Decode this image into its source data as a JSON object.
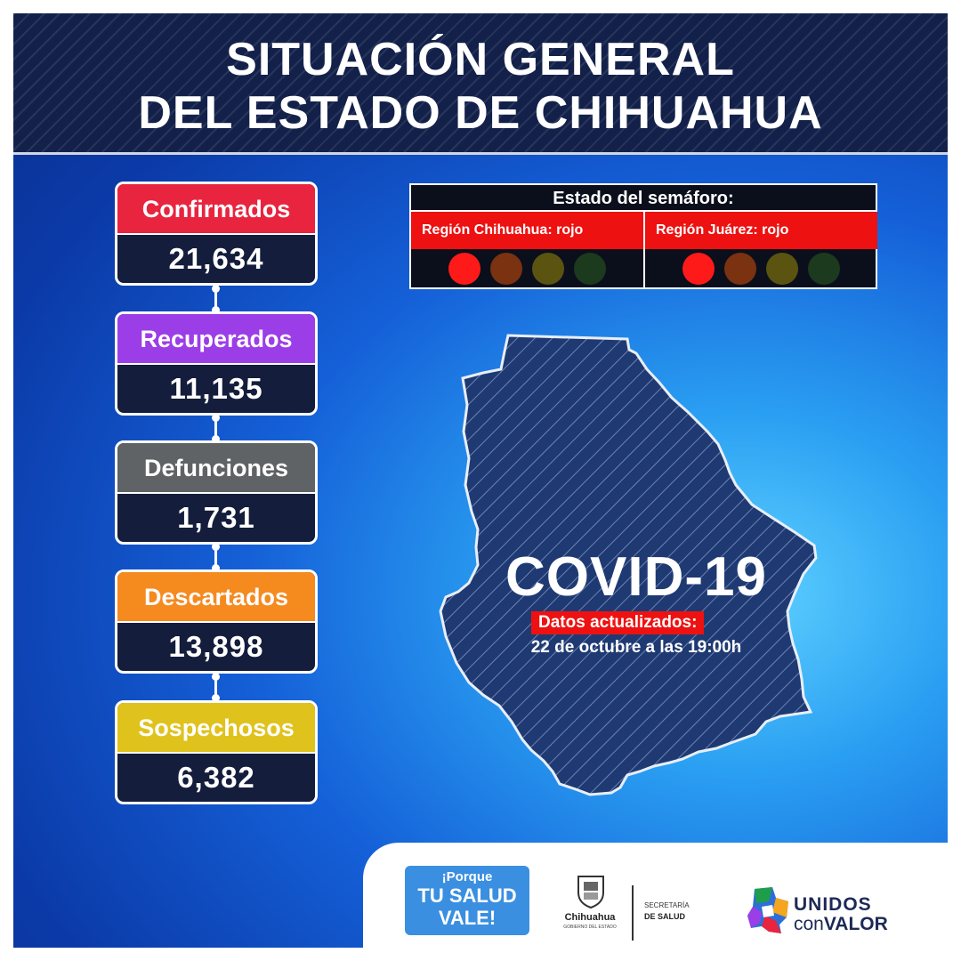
{
  "header": {
    "title_line_1": "SITUACIÓN GENERAL",
    "title_line_2": "DEL ESTADO DE CHIHUAHUA"
  },
  "stats": [
    {
      "label": "Confirmados",
      "value": "21,634",
      "color": "#e8243f"
    },
    {
      "label": "Recuperados",
      "value": "11,135",
      "color": "#9b3ee8"
    },
    {
      "label": "Defunciones",
      "value": "1,731",
      "color": "#5f6366"
    },
    {
      "label": "Descartados",
      "value": "13,898",
      "color": "#f58a1f"
    },
    {
      "label": "Sospechosos",
      "value": "6,382",
      "color": "#e0c21c"
    }
  ],
  "semaforo": {
    "title": "Estado del semáforo:",
    "regions": [
      {
        "label": "Región Chihuahua: rojo",
        "active": "red"
      },
      {
        "label": "Región Juárez: rojo",
        "active": "red"
      }
    ],
    "light_colors": [
      "#ff1a1a",
      "#7a3210",
      "#5a5410",
      "#1c3a1e"
    ]
  },
  "covid": {
    "title": "COVID-19",
    "updated_label": "Datos actualizados:",
    "updated_date": "22 de octubre a las 19:00h"
  },
  "footer": {
    "badge_line_1": "¡Porque",
    "badge_line_2": "TU SALUD",
    "badge_line_3": "VALE!",
    "gov_name": "Chihuahua",
    "gov_sub": "GOBIERNO DEL ESTADO",
    "secretaria_line_1": "SECRETARÍA",
    "secretaria_line_2": "DE SALUD",
    "unidos_line_1": "UNIDOS",
    "unidos_line_2a": "con",
    "unidos_line_2b": "VALOR"
  }
}
